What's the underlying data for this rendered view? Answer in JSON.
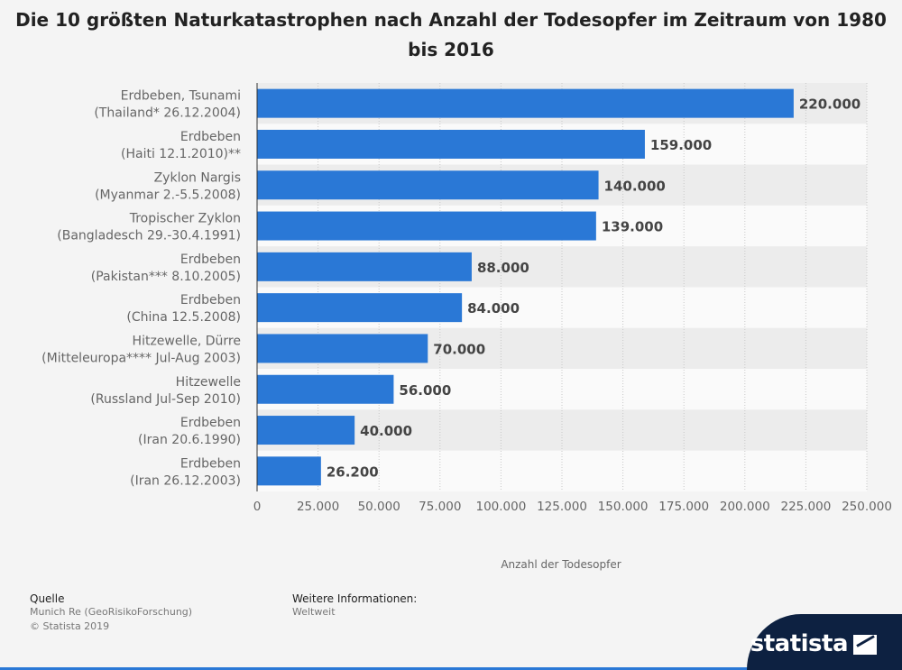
{
  "chart_data": {
    "type": "bar",
    "orientation": "horizontal",
    "title": "Die 10 größten Naturkatastrophen nach Anzahl der Todesopfer im Zeitraum von 1980 bis 2016",
    "categories": [
      [
        "Erdbeben, Tsunami",
        "(Thailand* 26.12.2004)"
      ],
      [
        "Erdbeben",
        "(Haiti 12.1.2010)**"
      ],
      [
        "Zyklon Nargis",
        "(Myanmar 2.-5.5.2008)"
      ],
      [
        "Tropischer Zyklon",
        "(Bangladesch 29.-30.4.1991)"
      ],
      [
        "Erdbeben",
        "(Pakistan*** 8.10.2005)"
      ],
      [
        "Erdbeben",
        "(China 12.5.2008)"
      ],
      [
        "Hitzewelle, Dürre",
        "(Mitteleuropa**** Jul-Aug 2003)"
      ],
      [
        "Hitzewelle",
        "(Russland Jul-Sep 2010)"
      ],
      [
        "Erdbeben",
        "(Iran 20.6.1990)"
      ],
      [
        "Erdbeben",
        "(Iran 26.12.2003)"
      ]
    ],
    "values": [
      220000,
      159000,
      140000,
      139000,
      88000,
      84000,
      70000,
      56000,
      40000,
      26200
    ],
    "value_labels": [
      "220.000",
      "159.000",
      "140.000",
      "139.000",
      "88.000",
      "84.000",
      "70.000",
      "56.000",
      "40.000",
      "26.200"
    ],
    "xlabel": "Anzahl der Todesopfer",
    "ylabel": "",
    "xlim": [
      0,
      250000
    ],
    "xticks": [
      0,
      25000,
      50000,
      75000,
      100000,
      125000,
      150000,
      175000,
      200000,
      225000,
      250000
    ],
    "xtick_labels": [
      "0",
      "25.000",
      "50.000",
      "75.000",
      "100.000",
      "125.000",
      "150.000",
      "175.000",
      "200.000",
      "225.000",
      "250.000"
    ],
    "grid": true,
    "colors": {
      "bar": "#2a78d6",
      "row_alt": "#ececec"
    }
  },
  "footer": {
    "source_heading": "Quelle",
    "source_lines": [
      "Munich Re (GeoRisikoForschung)",
      "© Statista 2019"
    ],
    "info_heading": "Weitere Informationen:",
    "info_text": "Weltweit"
  },
  "brand": {
    "name": "statista",
    "icon": "statista-logo-icon"
  }
}
